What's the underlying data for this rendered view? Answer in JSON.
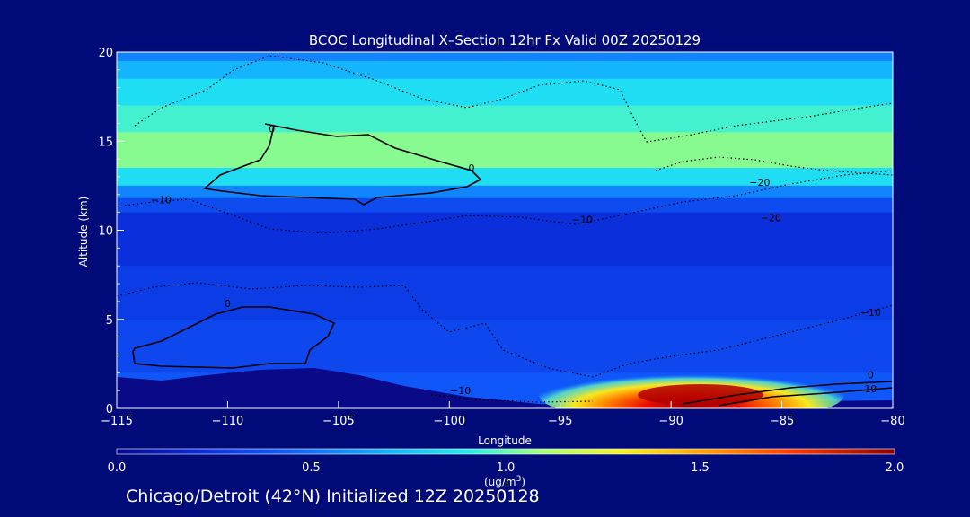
{
  "chart_data": {
    "type": "heatmap",
    "title": "BCOC Longitudinal X–Section 12hr  Fx Valid 00Z 20250129",
    "xlabel": "Longitude",
    "ylabel": "Altitude (km)",
    "xlim": [
      -115,
      -80
    ],
    "ylim": [
      0,
      20
    ],
    "xticks": [
      -115,
      -110,
      -105,
      -100,
      -95,
      -90,
      -85,
      -80
    ],
    "xtick_labels": [
      "−115",
      "−110",
      "−105",
      "−100",
      "−95",
      "−90",
      "−85",
      "−80"
    ],
    "yticks": [
      0,
      5,
      10,
      15,
      20
    ],
    "ytick_labels": [
      "0",
      "5",
      "10",
      "15",
      "20"
    ],
    "colorbar": {
      "min": 0.0,
      "max": 2.0,
      "ticks": [
        0.0,
        0.5,
        1.0,
        1.5,
        2.0
      ],
      "tick_labels": [
        "0.0",
        "0.5",
        "1.0",
        "1.5",
        "2.0"
      ],
      "label_line1": "(ug/m",
      "label_sup": "3",
      "label_line2": ")"
    },
    "concentration_layers": [
      {
        "altitude_km": [
          19.5,
          20
        ],
        "value": 0.55
      },
      {
        "altitude_km": [
          18.5,
          19.5
        ],
        "value": 0.7
      },
      {
        "altitude_km": [
          17,
          18.5
        ],
        "value": 0.85
      },
      {
        "altitude_km": [
          15.5,
          17
        ],
        "value": 0.95
      },
      {
        "altitude_km": [
          13.5,
          15.5
        ],
        "value": 1.05
      },
      {
        "altitude_km": [
          12.5,
          13.5
        ],
        "value": 0.85
      },
      {
        "altitude_km": [
          11.8,
          12.5
        ],
        "value": 0.55
      },
      {
        "altitude_km": [
          11,
          11.8
        ],
        "value": 0.35
      },
      {
        "altitude_km": [
          8,
          11
        ],
        "value": 0.22
      },
      {
        "altitude_km": [
          5,
          8
        ],
        "value": 0.28
      },
      {
        "altitude_km": [
          2,
          5
        ],
        "value": 0.33
      },
      {
        "altitude_km": [
          0,
          2
        ],
        "value": 0.4
      }
    ],
    "surface_plume": {
      "longitude_range": [
        -93,
        -83
      ],
      "peak_longitude": -89,
      "peak_value": 2.0,
      "altitude_range_km": [
        0,
        1.5
      ]
    },
    "contour_labels": [
      {
        "text": "0",
        "lon": -108,
        "alt": 15.5
      },
      {
        "text": "0",
        "lon": -99,
        "alt": 13.3
      },
      {
        "text": "−10",
        "lon": -113,
        "alt": 11.5
      },
      {
        "text": "−20",
        "lon": -86,
        "alt": 12.5
      },
      {
        "text": "−20",
        "lon": -85.5,
        "alt": 10.5
      },
      {
        "text": "−10",
        "lon": -94,
        "alt": 10.4
      },
      {
        "text": "0",
        "lon": -110,
        "alt": 5.7
      },
      {
        "text": "−10",
        "lon": -81,
        "alt": 5.2
      },
      {
        "text": "0",
        "lon": -81,
        "alt": 1.7
      },
      {
        "text": "10",
        "lon": -81,
        "alt": 0.9
      },
      {
        "text": "−10",
        "lon": -99.5,
        "alt": 0.8
      }
    ]
  },
  "footer": {
    "text": "Chicago/Detroit (42°N) Initialized 12Z 20250128"
  }
}
